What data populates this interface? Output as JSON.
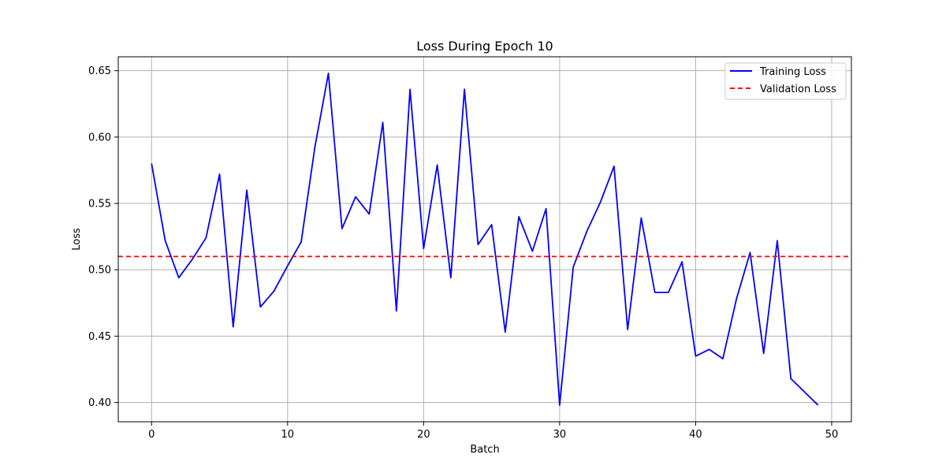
{
  "chart_data": {
    "type": "line",
    "title": "Loss During Epoch 10",
    "xlabel": "Batch",
    "ylabel": "Loss",
    "xlim": [
      -2.45,
      51.45
    ],
    "ylim": [
      0.3855,
      0.6605
    ],
    "xticks": [
      0,
      10,
      20,
      30,
      40,
      50
    ],
    "yticks": [
      0.4,
      0.45,
      0.5,
      0.55,
      0.6,
      0.65
    ],
    "grid": true,
    "legend_position": "top-right",
    "series": [
      {
        "name": "Training Loss",
        "style": "solid",
        "color": "#0000ff",
        "x": [
          0,
          1,
          2,
          3,
          4,
          5,
          6,
          7,
          8,
          9,
          10,
          11,
          12,
          13,
          14,
          15,
          16,
          17,
          18,
          19,
          20,
          21,
          22,
          23,
          24,
          25,
          26,
          27,
          28,
          29,
          30,
          31,
          32,
          33,
          34,
          35,
          36,
          37,
          38,
          39,
          40,
          41,
          42,
          43,
          44,
          45,
          46,
          47,
          48,
          49
        ],
        "values": [
          0.58,
          0.522,
          0.494,
          0.508,
          0.524,
          0.572,
          0.457,
          0.56,
          0.472,
          0.484,
          0.503,
          0.521,
          0.592,
          0.648,
          0.531,
          0.555,
          0.542,
          0.611,
          0.469,
          0.636,
          0.516,
          0.579,
          0.494,
          0.636,
          0.519,
          0.534,
          0.453,
          0.54,
          0.514,
          0.546,
          0.398,
          0.502,
          0.529,
          0.551,
          0.578,
          0.455,
          0.539,
          0.483,
          0.483,
          0.506,
          0.435,
          0.44,
          0.433,
          0.478,
          0.513,
          0.437,
          0.522,
          0.418,
          0.408,
          0.398
        ]
      },
      {
        "name": "Validation Loss",
        "style": "dashed",
        "color": "#ff0000",
        "y": 0.51
      }
    ]
  }
}
